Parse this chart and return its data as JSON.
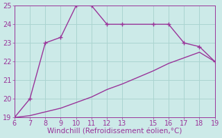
{
  "xlabel": "Windchill (Refroidissement éolien,°C)",
  "x_upper": [
    6,
    7,
    8,
    9,
    10,
    11,
    12,
    13,
    15,
    16,
    17,
    18,
    19
  ],
  "y_upper": [
    19.0,
    20.0,
    23.0,
    23.3,
    25.0,
    25.0,
    24.0,
    24.0,
    24.0,
    24.0,
    23.0,
    22.8,
    22.0
  ],
  "x_lower": [
    6,
    7,
    8,
    9,
    10,
    11,
    12,
    13,
    15,
    16,
    17,
    18,
    19
  ],
  "y_lower": [
    19.0,
    19.1,
    19.3,
    19.5,
    19.8,
    20.1,
    20.5,
    20.8,
    21.5,
    21.9,
    22.2,
    22.5,
    22.0
  ],
  "line_color": "#993399",
  "bg_color": "#cceae8",
  "grid_color": "#aad4d0",
  "xlim": [
    6,
    19
  ],
  "ylim": [
    19,
    25
  ],
  "xticks": [
    6,
    7,
    8,
    9,
    10,
    11,
    12,
    13,
    15,
    16,
    17,
    18,
    19
  ],
  "yticks": [
    19,
    20,
    21,
    22,
    23,
    24,
    25
  ],
  "tick_fontsize": 7,
  "xlabel_fontsize": 7.5,
  "marker": "+",
  "markersize": 5,
  "linewidth": 1.0
}
